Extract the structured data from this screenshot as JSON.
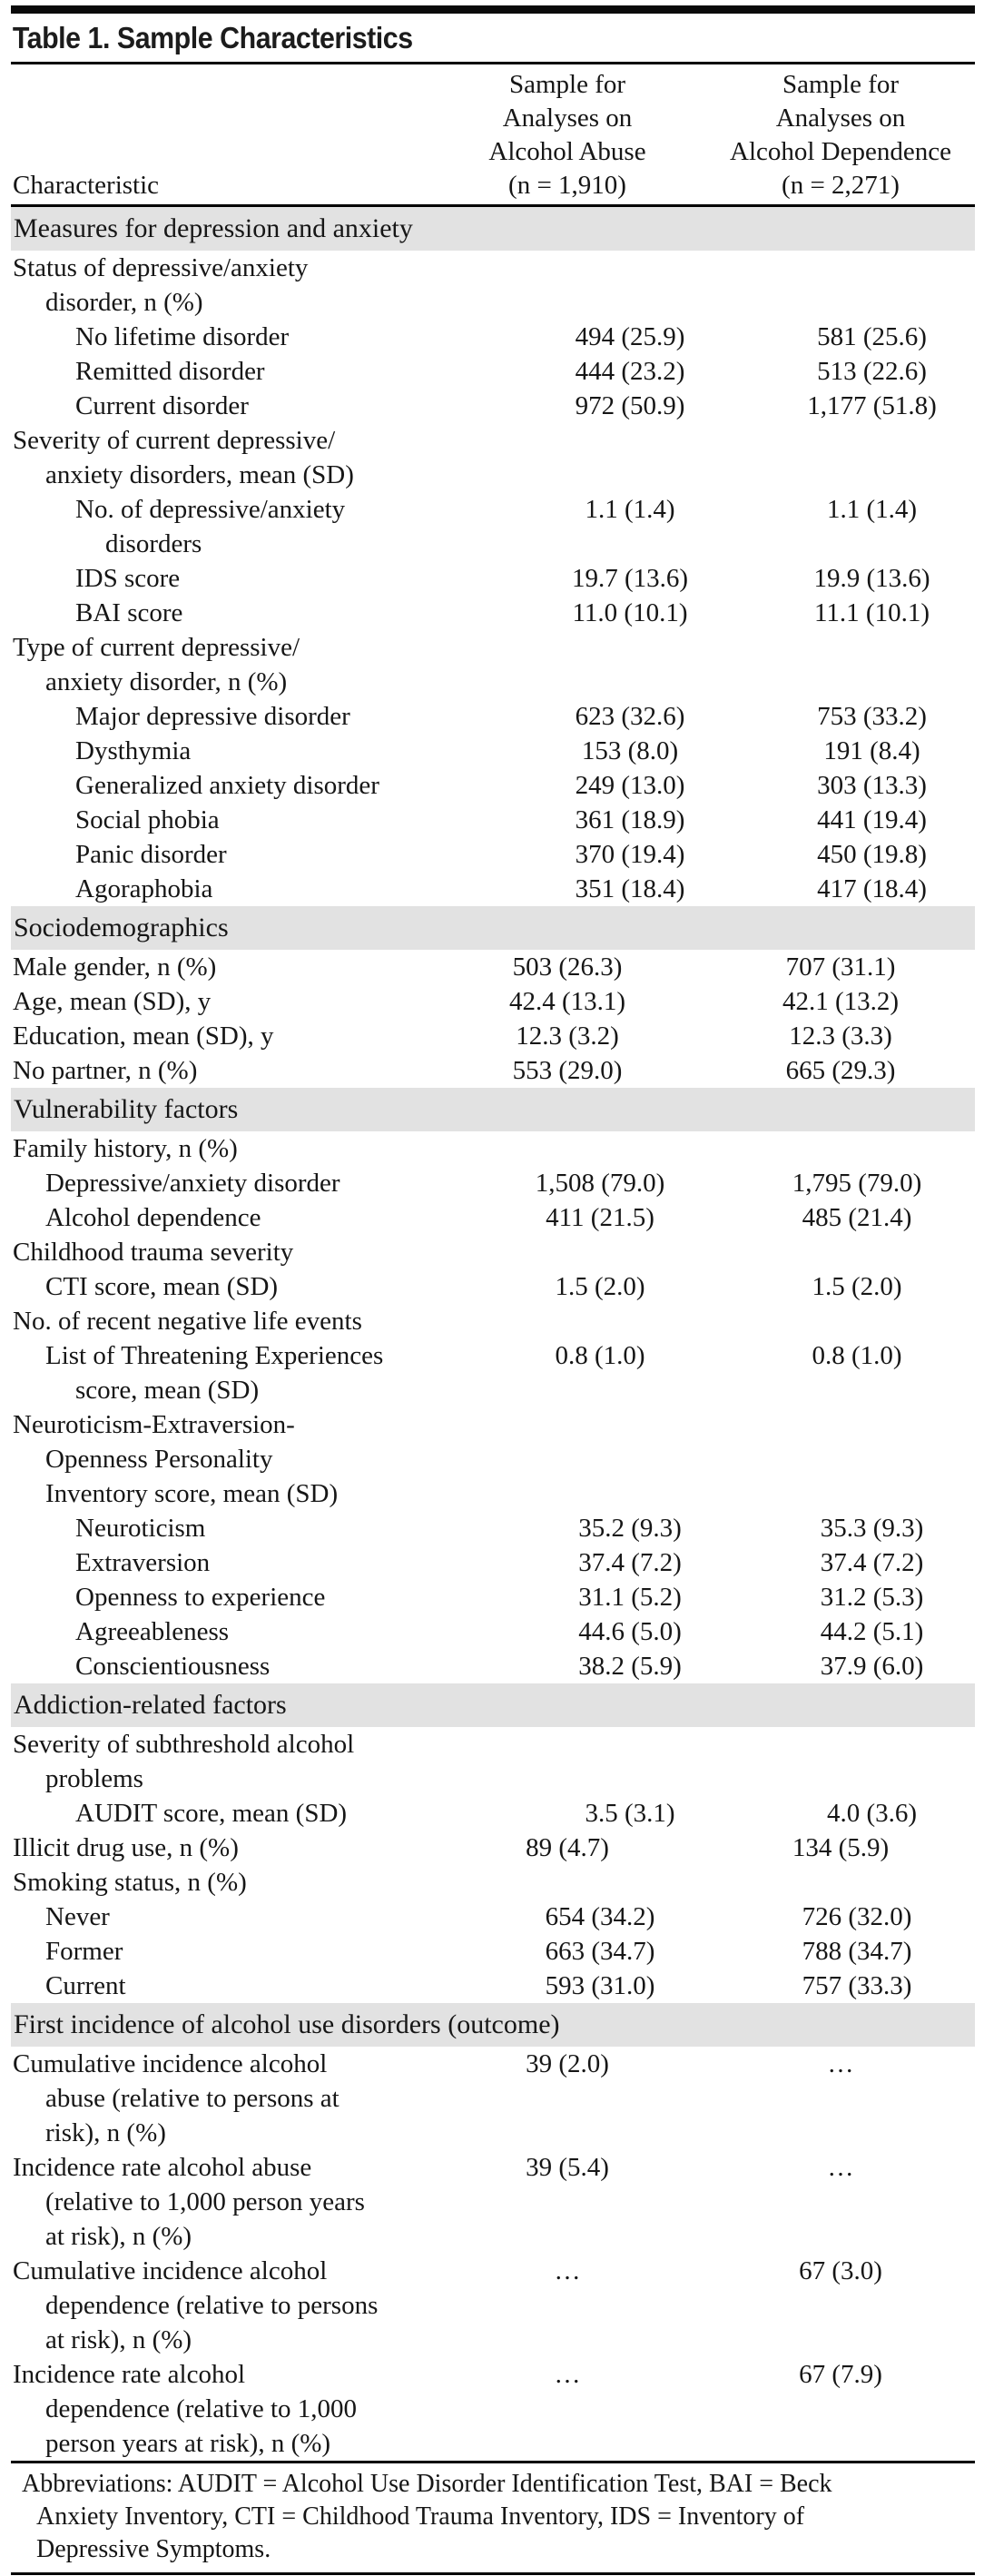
{
  "title": "Table 1. Sample Characteristics",
  "header": {
    "characteristic_label": "Characteristic",
    "col_abuse_lines": [
      "Sample for",
      "Analyses on",
      "Alcohol Abuse",
      "(n = 1,910)"
    ],
    "col_dependence_lines": [
      "Sample for",
      "Analyses on",
      "Alcohol Dependence",
      "(n = 2,271)"
    ]
  },
  "sections": [
    {
      "header": "Measures for depression and anxiety",
      "lines": [
        {
          "t": "Status of depressive/anxiety",
          "i": 0,
          "v1": "",
          "v2": ""
        },
        {
          "t": "disorder, n (%)",
          "i": 1,
          "v1": "",
          "v2": ""
        },
        {
          "t": "No lifetime disorder",
          "i": 2,
          "v1": "494 (25.9)",
          "v2": "581 (25.6)"
        },
        {
          "t": "Remitted disorder",
          "i": 2,
          "v1": "444 (23.2)",
          "v2": "513 (22.6)"
        },
        {
          "t": "Current disorder",
          "i": 2,
          "v1": "972 (50.9)",
          "v2": "1,177 (51.8)"
        },
        {
          "t": "Severity of current depressive/",
          "i": 0,
          "v1": "",
          "v2": ""
        },
        {
          "t": "anxiety disorders, mean (SD)",
          "i": 1,
          "v1": "",
          "v2": ""
        },
        {
          "t": "No. of depressive/anxiety",
          "i": 2,
          "v1": "1.1 (1.4)",
          "v2": "1.1 (1.4)"
        },
        {
          "t": "disorders",
          "i": 3,
          "v1": "",
          "v2": ""
        },
        {
          "t": "IDS score",
          "i": 2,
          "v1": "19.7 (13.6)",
          "v2": "19.9 (13.6)"
        },
        {
          "t": "BAI score",
          "i": 2,
          "v1": "11.0 (10.1)",
          "v2": "11.1 (10.1)"
        },
        {
          "t": "Type of current depressive/",
          "i": 0,
          "v1": "",
          "v2": ""
        },
        {
          "t": "anxiety disorder, n (%)",
          "i": 1,
          "v1": "",
          "v2": ""
        },
        {
          "t": "Major depressive disorder",
          "i": 2,
          "v1": "623 (32.6)",
          "v2": "753 (33.2)"
        },
        {
          "t": "Dysthymia",
          "i": 2,
          "v1": "153 (8.0)",
          "v2": "191 (8.4)"
        },
        {
          "t": "Generalized anxiety disorder",
          "i": 2,
          "v1": "249 (13.0)",
          "v2": "303 (13.3)"
        },
        {
          "t": "Social phobia",
          "i": 2,
          "v1": "361 (18.9)",
          "v2": "441 (19.4)"
        },
        {
          "t": "Panic disorder",
          "i": 2,
          "v1": "370 (19.4)",
          "v2": "450 (19.8)"
        },
        {
          "t": "Agoraphobia",
          "i": 2,
          "v1": "351 (18.4)",
          "v2": "417 (18.4)"
        }
      ]
    },
    {
      "header": "Sociodemographics",
      "lines": [
        {
          "t": "Male gender, n (%)",
          "i": 0,
          "v1": "503 (26.3)",
          "v2": "707 (31.1)"
        },
        {
          "t": "Age, mean (SD), y",
          "i": 0,
          "v1": "42.4 (13.1)",
          "v2": "42.1 (13.2)"
        },
        {
          "t": "Education, mean (SD), y",
          "i": 0,
          "v1": "12.3 (3.2)",
          "v2": "12.3 (3.3)"
        },
        {
          "t": "No partner, n (%)",
          "i": 0,
          "v1": "553 (29.0)",
          "v2": "665 (29.3)"
        }
      ]
    },
    {
      "header": "Vulnerability factors",
      "lines": [
        {
          "t": "Family history, n (%)",
          "i": 0,
          "v1": "",
          "v2": ""
        },
        {
          "t": "Depressive/anxiety disorder",
          "i": 1,
          "v1": "1,508 (79.0)",
          "v2": "1,795 (79.0)"
        },
        {
          "t": "Alcohol dependence",
          "i": 1,
          "v1": "411 (21.5)",
          "v2": "485 (21.4)"
        },
        {
          "t": "Childhood trauma severity",
          "i": 0,
          "v1": "",
          "v2": ""
        },
        {
          "t": "CTI score, mean (SD)",
          "i": 1,
          "v1": "1.5 (2.0)",
          "v2": "1.5 (2.0)"
        },
        {
          "t": "No. of recent negative life events",
          "i": 0,
          "v1": "",
          "v2": ""
        },
        {
          "t": "List of Threatening Experiences",
          "i": 1,
          "v1": "0.8 (1.0)",
          "v2": "0.8 (1.0)"
        },
        {
          "t": "score, mean (SD)",
          "i": 2,
          "v1": "",
          "v2": ""
        },
        {
          "t": "Neuroticism-Extraversion-",
          "i": 0,
          "v1": "",
          "v2": ""
        },
        {
          "t": "Openness Personality",
          "i": 1,
          "v1": "",
          "v2": ""
        },
        {
          "t": "Inventory score, mean (SD)",
          "i": 1,
          "v1": "",
          "v2": ""
        },
        {
          "t": "Neuroticism",
          "i": 2,
          "v1": "35.2 (9.3)",
          "v2": "35.3 (9.3)"
        },
        {
          "t": "Extraversion",
          "i": 2,
          "v1": "37.4 (7.2)",
          "v2": "37.4 (7.2)"
        },
        {
          "t": "Openness to experience",
          "i": 2,
          "v1": "31.1 (5.2)",
          "v2": "31.2 (5.3)"
        },
        {
          "t": "Agreeableness",
          "i": 2,
          "v1": "44.6 (5.0)",
          "v2": "44.2 (5.1)"
        },
        {
          "t": "Conscientiousness",
          "i": 2,
          "v1": "38.2 (5.9)",
          "v2": "37.9 (6.0)"
        }
      ]
    },
    {
      "header": "Addiction-related factors",
      "lines": [
        {
          "t": "Severity of subthreshold alcohol",
          "i": 0,
          "v1": "",
          "v2": ""
        },
        {
          "t": "problems",
          "i": 1,
          "v1": "",
          "v2": ""
        },
        {
          "t": "AUDIT score, mean (SD)",
          "i": 2,
          "v1": "3.5 (3.1)",
          "v2": "4.0 (3.6)"
        },
        {
          "t": "Illicit drug use, n (%)",
          "i": 0,
          "v1": "89 (4.7)",
          "v2": "134 (5.9)"
        },
        {
          "t": "Smoking status, n (%)",
          "i": 0,
          "v1": "",
          "v2": ""
        },
        {
          "t": "Never",
          "i": 1,
          "v1": "654 (34.2)",
          "v2": "726 (32.0)"
        },
        {
          "t": "Former",
          "i": 1,
          "v1": "663 (34.7)",
          "v2": "788 (34.7)"
        },
        {
          "t": "Current",
          "i": 1,
          "v1": "593 (31.0)",
          "v2": "757 (33.3)"
        }
      ]
    },
    {
      "header": "First incidence of alcohol use disorders (outcome)",
      "lines": [
        {
          "t": "Cumulative incidence alcohol",
          "i": 0,
          "v1": "39 (2.0)",
          "v2": "…"
        },
        {
          "t": "abuse (relative to persons at",
          "i": 1,
          "v1": "",
          "v2": ""
        },
        {
          "t": "risk), n (%)",
          "i": 1,
          "v1": "",
          "v2": ""
        },
        {
          "t": "Incidence rate alcohol abuse",
          "i": 0,
          "v1": "39 (5.4)",
          "v2": "…"
        },
        {
          "t": "(relative to 1,000 person years",
          "i": 1,
          "v1": "",
          "v2": ""
        },
        {
          "t": "at risk), n (%)",
          "i": 1,
          "v1": "",
          "v2": ""
        },
        {
          "t": "Cumulative incidence alcohol",
          "i": 0,
          "v1": "…",
          "v2": "67 (3.0)"
        },
        {
          "t": "dependence (relative to persons",
          "i": 1,
          "v1": "",
          "v2": ""
        },
        {
          "t": "at risk), n (%)",
          "i": 1,
          "v1": "",
          "v2": ""
        },
        {
          "t": "Incidence rate alcohol",
          "i": 0,
          "v1": "…",
          "v2": "67 (7.9)"
        },
        {
          "t": "dependence (relative to 1,000",
          "i": 1,
          "v1": "",
          "v2": ""
        },
        {
          "t": "person years at risk), n (%)",
          "i": 1,
          "v1": "",
          "v2": ""
        }
      ]
    }
  ],
  "footnote_lines": [
    "Abbreviations: AUDIT = Alcohol Use Disorder Identification Test, BAI = Beck",
    "Anxiety Inventory, CTI = Childhood Trauma Inventory, IDS = Inventory of",
    "Depressive Symptoms."
  ],
  "colors": {
    "section_band": "#e2e2e2",
    "rule": "#000000",
    "text": "#161616"
  }
}
